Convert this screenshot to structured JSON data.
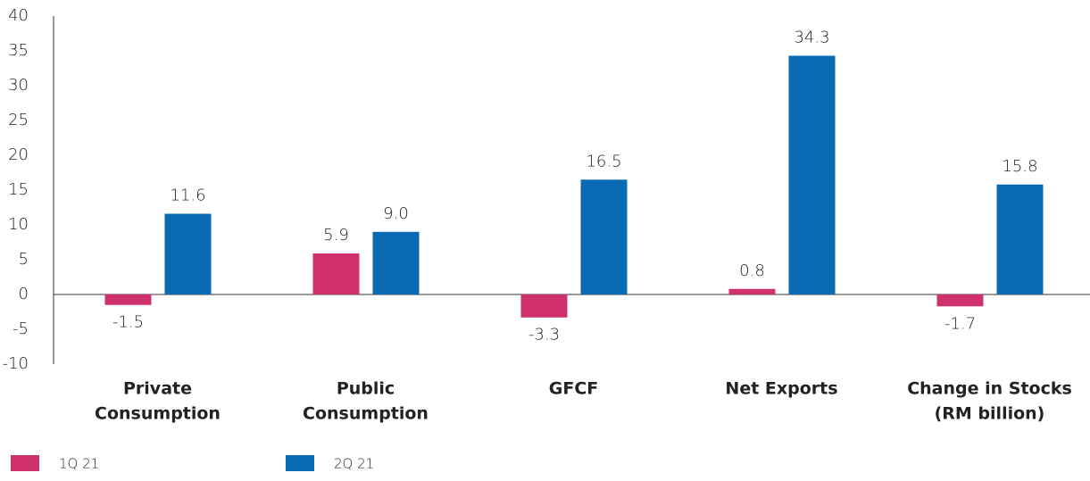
{
  "chart_data": {
    "type": "bar",
    "categories": [
      [
        "Private",
        "Consumption"
      ],
      [
        "Public",
        "Consumption"
      ],
      [
        "GFCF"
      ],
      [
        "Net Exports"
      ],
      [
        "Change in Stocks",
        "(RM billion)"
      ]
    ],
    "series": [
      {
        "name": "1Q 21",
        "color": "#d0306c",
        "values": [
          -1.5,
          5.9,
          -3.3,
          0.8,
          -1.7
        ],
        "value_labels": [
          "-1.5",
          "5.9",
          "-3.3",
          "0.8",
          "-1.7"
        ]
      },
      {
        "name": "2Q 21",
        "color": "#0a6ab4",
        "values": [
          11.6,
          9.0,
          16.5,
          34.3,
          15.8
        ],
        "value_labels": [
          "11.6",
          "9.0",
          "16.5",
          "34.3",
          "15.8"
        ]
      }
    ],
    "ylim": [
      -10,
      40
    ],
    "yticks": [
      -10,
      -5,
      0,
      5,
      10,
      15,
      20,
      25,
      30,
      35,
      40
    ]
  }
}
